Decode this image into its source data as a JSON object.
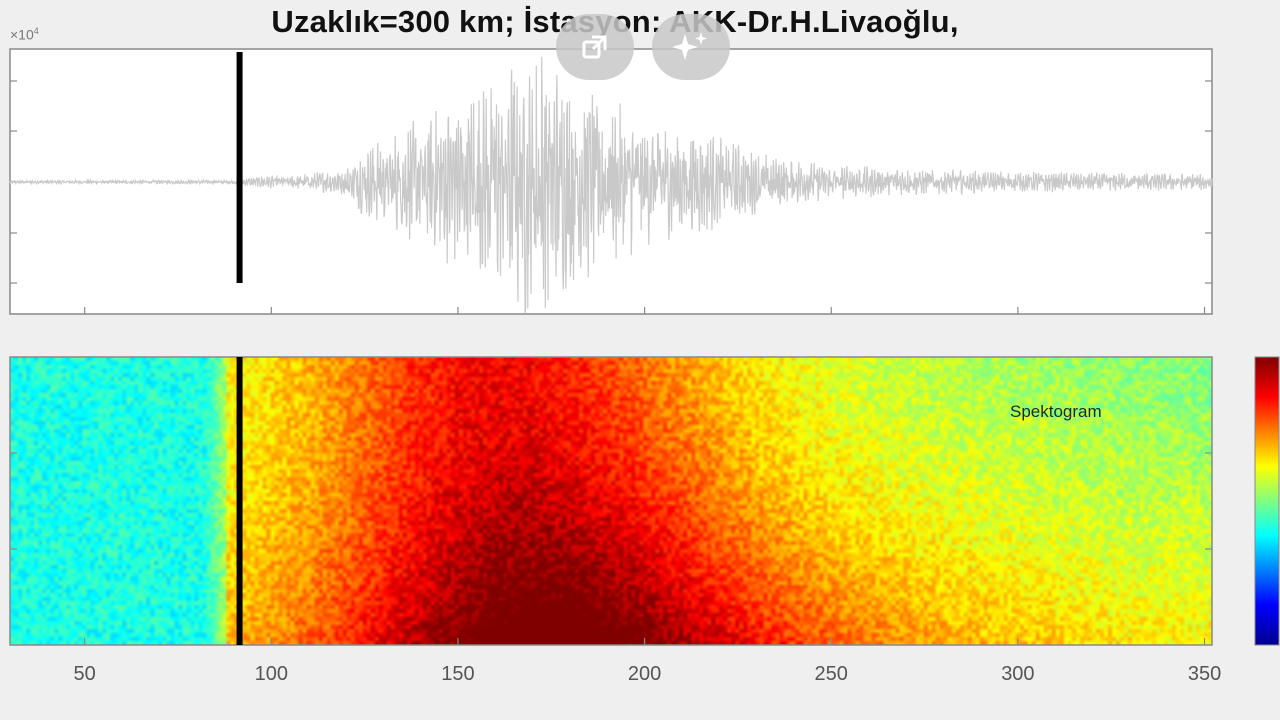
{
  "header": {
    "title": "Uzaklık=300 km; İstasyon: AKK-Dr.H.Livaoğlu,",
    "exponent_base": "×10",
    "exponent_power": "4"
  },
  "overlay_buttons": [
    {
      "icon": "open-in-new-icon"
    },
    {
      "icon": "sparkle-ai-icon"
    }
  ],
  "chart_data": [
    {
      "type": "line",
      "name": "seismogram",
      "xlim": [
        30,
        352
      ],
      "ylim": [
        -1,
        1
      ],
      "vertical_marker_x": 91.5,
      "trace_color": "#c9c9c9",
      "marker_color": "#000000",
      "grid": false,
      "envelope": [
        {
          "x": 30,
          "amp": 0.01
        },
        {
          "x": 90,
          "amp": 0.012
        },
        {
          "x": 95,
          "amp": 0.03
        },
        {
          "x": 110,
          "amp": 0.05
        },
        {
          "x": 120,
          "amp": 0.08
        },
        {
          "x": 125,
          "amp": 0.22
        },
        {
          "x": 140,
          "amp": 0.38
        },
        {
          "x": 150,
          "amp": 0.5
        },
        {
          "x": 160,
          "amp": 0.62
        },
        {
          "x": 170,
          "amp": 0.9
        },
        {
          "x": 175,
          "amp": 0.7
        },
        {
          "x": 190,
          "amp": 0.5
        },
        {
          "x": 200,
          "amp": 0.38
        },
        {
          "x": 215,
          "amp": 0.3
        },
        {
          "x": 230,
          "amp": 0.18
        },
        {
          "x": 250,
          "amp": 0.1
        },
        {
          "x": 270,
          "amp": 0.08
        },
        {
          "x": 300,
          "amp": 0.06
        },
        {
          "x": 352,
          "amp": 0.05
        }
      ]
    },
    {
      "type": "heatmap",
      "name": "spectrogram",
      "label": "Spektogram",
      "xlim": [
        30,
        352
      ],
      "x_ticks": [
        50,
        100,
        150,
        200,
        250,
        300,
        350
      ],
      "vertical_marker_x": 91.5,
      "colormap": "jet",
      "colormap_stops": [
        "#00008f",
        "#0000ff",
        "#00ffff",
        "#ffff00",
        "#ff0000",
        "#800000"
      ]
    }
  ]
}
